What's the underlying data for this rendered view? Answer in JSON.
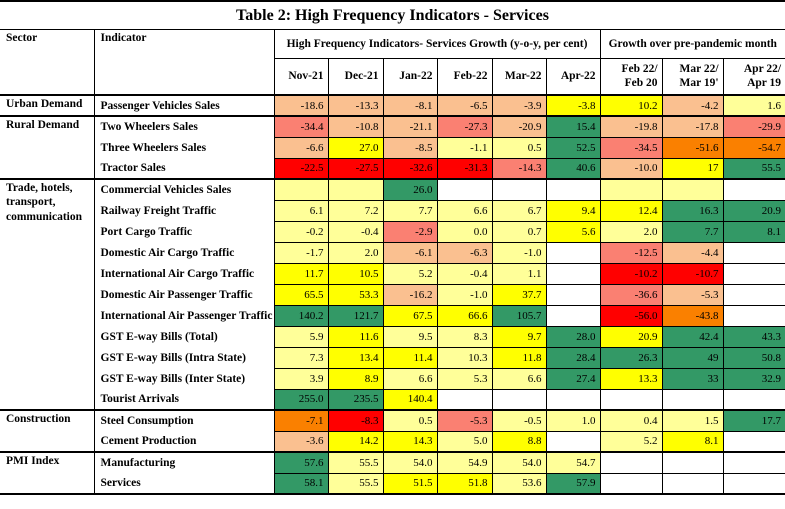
{
  "title": "Table 2: High Frequency Indicators - Services",
  "table": {
    "column_headers": {
      "sector": "Sector",
      "indicator": "Indicator",
      "group_yoy": "High Frequency Indicators- Services Growth (y-o-y, per cent)",
      "group_prepandemic": "Growth over pre-pandemic month",
      "months": [
        "Nov-21",
        "Dec-21",
        "Jan-22",
        "Feb-22",
        "Mar-22",
        "Apr-22"
      ],
      "growth_periods": [
        {
          "line1": "Feb 22/",
          "line2": "Feb 20"
        },
        {
          "line1": "Mar 22/",
          "line2": "Mar 19'"
        },
        {
          "line1": "Apr 22/",
          "line2": "Apr 19"
        }
      ]
    },
    "palette": {
      "g": "#339966",
      "y": "#FFFF00",
      "p": "#FFFF99",
      "t": "#FAC090",
      "s": "#FA8072",
      "o": "#FA8000",
      "r": "#FF0000",
      "w": "#FFFFFF"
    },
    "groups": [
      {
        "sector": "Urban Demand",
        "indicators": [
          {
            "label": "Passenger Vehicles Sales",
            "values": [
              "-18.6",
              "-13.3",
              "-8.1",
              "-6.5",
              "-3.9",
              "-3.8",
              "10.2",
              "-4.2",
              "1.6"
            ],
            "colors": [
              "t",
              "t",
              "t",
              "t",
              "t",
              "y",
              "y",
              "t",
              "p"
            ]
          }
        ]
      },
      {
        "sector": "Rural Demand",
        "indicators": [
          {
            "label": "Two Wheelers Sales",
            "values": [
              "-34.4",
              "-10.8",
              "-21.1",
              "-27.3",
              "-20.9",
              "15.4",
              "-19.8",
              "-17.8",
              "-29.9"
            ],
            "colors": [
              "s",
              "t",
              "t",
              "s",
              "t",
              "g",
              "t",
              "t",
              "s"
            ]
          },
          {
            "label": "Three Wheelers Sales",
            "values": [
              "-6.6",
              "27.0",
              "-8.5",
              "-1.1",
              "0.5",
              "52.5",
              "-34.5",
              "-51.6",
              "-54.7"
            ],
            "colors": [
              "t",
              "y",
              "t",
              "p",
              "p",
              "g",
              "s",
              "o",
              "o"
            ]
          },
          {
            "label": "Tractor Sales",
            "values": [
              "-22.5",
              "-27.5",
              "-32.6",
              "-31.3",
              "-14.3",
              "40.6",
              "-10.0",
              "17",
              "55.5"
            ],
            "colors": [
              "r",
              "r",
              "r",
              "r",
              "s",
              "g",
              "t",
              "y",
              "g"
            ]
          }
        ]
      },
      {
        "sector": "Trade, hotels, transport, communication",
        "indicators": [
          {
            "label": "Commercial Vehicles Sales",
            "values": [
              "",
              "",
              "26.0",
              "",
              "",
              "",
              "",
              "",
              ""
            ],
            "colors": [
              "p",
              "p",
              "g",
              "w",
              "w",
              "w",
              "p",
              "p",
              "w"
            ]
          },
          {
            "label": "Railway Freight Traffic",
            "values": [
              "6.1",
              "7.2",
              "7.7",
              "6.6",
              "6.7",
              "9.4",
              "12.4",
              "16.3",
              "20.9"
            ],
            "colors": [
              "p",
              "p",
              "p",
              "p",
              "p",
              "y",
              "y",
              "g",
              "g"
            ]
          },
          {
            "label": "Port Cargo Traffic",
            "values": [
              "-0.2",
              "-0.4",
              "-2.9",
              "0.0",
              "0.7",
              "5.6",
              "2.0",
              "7.7",
              "8.1"
            ],
            "colors": [
              "p",
              "p",
              "s",
              "p",
              "p",
              "y",
              "p",
              "g",
              "g"
            ]
          },
          {
            "label": "Domestic Air Cargo Traffic",
            "values": [
              "-1.7",
              "2.0",
              "-6.1",
              "-6.3",
              "-1.0",
              "",
              "-12.5",
              "-4.4",
              ""
            ],
            "colors": [
              "p",
              "p",
              "t",
              "t",
              "p",
              "w",
              "s",
              "t",
              "w"
            ]
          },
          {
            "label": "International Air Cargo Traffic",
            "values": [
              "11.7",
              "10.5",
              "5.2",
              "-0.4",
              "1.1",
              "",
              "-10.2",
              "-10.7",
              ""
            ],
            "colors": [
              "y",
              "y",
              "p",
              "p",
              "p",
              "w",
              "r",
              "r",
              "w"
            ]
          },
          {
            "label": "Domestic Air Passenger Traffic",
            "values": [
              "65.5",
              "53.3",
              "-16.2",
              "-1.0",
              "37.7",
              "",
              "-36.6",
              "-5.3",
              ""
            ],
            "colors": [
              "y",
              "y",
              "t",
              "p",
              "y",
              "w",
              "s",
              "t",
              "w"
            ]
          },
          {
            "label": "International Air Passenger Traffic",
            "values": [
              "140.2",
              "121.7",
              "67.5",
              "66.6",
              "105.7",
              "",
              "-56.0",
              "-43.8",
              ""
            ],
            "colors": [
              "g",
              "g",
              "y",
              "y",
              "g",
              "w",
              "r",
              "o",
              "w"
            ]
          },
          {
            "label": "GST E-way Bills (Total)",
            "values": [
              "5.9",
              "11.6",
              "9.5",
              "8.3",
              "9.7",
              "28.0",
              "20.9",
              "42.4",
              "43.3"
            ],
            "colors": [
              "p",
              "y",
              "p",
              "p",
              "y",
              "g",
              "y",
              "g",
              "g"
            ]
          },
          {
            "label": "GST E-way Bills (Intra State)",
            "values": [
              "7.3",
              "13.4",
              "11.4",
              "10.3",
              "11.8",
              "28.4",
              "26.3",
              "49",
              "50.8"
            ],
            "colors": [
              "p",
              "y",
              "y",
              "p",
              "y",
              "g",
              "g",
              "g",
              "g"
            ]
          },
          {
            "label": "GST E-way Bills (Inter State)",
            "values": [
              "3.9",
              "8.9",
              "6.6",
              "5.3",
              "6.6",
              "27.4",
              "13.3",
              "33",
              "32.9"
            ],
            "colors": [
              "p",
              "y",
              "p",
              "p",
              "p",
              "g",
              "y",
              "g",
              "g"
            ]
          },
          {
            "label": "Tourist Arrivals",
            "values": [
              "255.0",
              "235.5",
              "140.4",
              "",
              "",
              "",
              "",
              "",
              ""
            ],
            "colors": [
              "g",
              "g",
              "y",
              "w",
              "w",
              "w",
              "w",
              "w",
              "w"
            ]
          }
        ]
      },
      {
        "sector": "Construction",
        "indicators": [
          {
            "label": "Steel Consumption",
            "values": [
              "-7.1",
              "-8.3",
              "0.5",
              "-5.3",
              "-0.5",
              "1.0",
              "0.4",
              "1.5",
              "17.7"
            ],
            "colors": [
              "o",
              "r",
              "p",
              "s",
              "p",
              "p",
              "p",
              "p",
              "g"
            ]
          },
          {
            "label": "Cement Production",
            "values": [
              "-3.6",
              "14.2",
              "14.3",
              "5.0",
              "8.8",
              "",
              "5.2",
              "8.1",
              ""
            ],
            "colors": [
              "t",
              "y",
              "y",
              "p",
              "y",
              "w",
              "p",
              "y",
              "w"
            ]
          }
        ]
      },
      {
        "sector": "PMI Index",
        "indicators": [
          {
            "label": "Manufacturing",
            "values": [
              "57.6",
              "55.5",
              "54.0",
              "54.9",
              "54.0",
              "54.7",
              "",
              "",
              ""
            ],
            "colors": [
              "g",
              "p",
              "p",
              "p",
              "p",
              "p",
              "w",
              "w",
              "w"
            ]
          },
          {
            "label": "Services",
            "values": [
              "58.1",
              "55.5",
              "51.5",
              "51.8",
              "53.6",
              "57.9",
              "",
              "",
              ""
            ],
            "colors": [
              "g",
              "p",
              "y",
              "y",
              "p",
              "g",
              "w",
              "w",
              "w"
            ]
          }
        ]
      }
    ]
  }
}
